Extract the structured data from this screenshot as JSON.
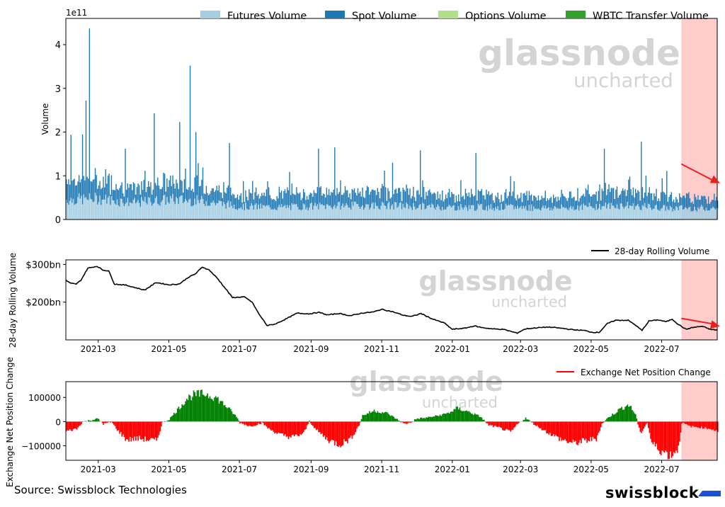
{
  "source_label": "Source: Swissblock Technologies",
  "brand": {
    "name": "swissblock",
    "mark": "swissblock-logo-icon"
  },
  "watermark": {
    "line1": "glassnode",
    "line2": "uncharted"
  },
  "colors": {
    "futures": "#a6cee3",
    "spot": "#1f78b4",
    "options": "#b2df8a",
    "wbtc": "#33a02c",
    "rolling": "#000000",
    "net_pos": "#008000",
    "net_neg": "#ff0000",
    "highlight": "#ffcccc",
    "arrow": "#e8211c",
    "brand_mark": "#1a4fd6"
  },
  "chart_data": [
    {
      "id": "volume",
      "type": "bar",
      "stacked": true,
      "xlim": [
        "2021-02-01",
        "2022-08-18"
      ],
      "ylim": [
        0,
        4.6
      ],
      "ylabel": "Volume",
      "y_exponent_label": "1e11",
      "yticks": [
        0,
        1,
        2,
        3,
        4
      ],
      "ytick_labels": [
        "0",
        "1",
        "2",
        "3",
        "4"
      ],
      "legend": {
        "placement": "top",
        "entries": [
          "Futures Volume",
          "Spot Volume",
          "Options Volume",
          "WBTC Transfer Volume"
        ]
      },
      "highlight_range": [
        "2022-07-18",
        "2022-08-18"
      ],
      "arrow": {
        "from": [
          "2022-07-18",
          1.27
        ],
        "to": [
          "2022-08-18",
          0.83
        ]
      },
      "series": [
        {
          "name": "Futures Volume",
          "anchors": [
            [
              "2021-02-01",
              0.45
            ],
            [
              "2021-03-01",
              0.48
            ],
            [
              "2021-04-01",
              0.38
            ],
            [
              "2021-05-01",
              0.46
            ],
            [
              "2021-06-01",
              0.42
            ],
            [
              "2021-07-01",
              0.3
            ],
            [
              "2021-08-01",
              0.28
            ],
            [
              "2021-09-01",
              0.3
            ],
            [
              "2021-10-01",
              0.32
            ],
            [
              "2021-11-01",
              0.32
            ],
            [
              "2021-12-01",
              0.3
            ],
            [
              "2022-01-01",
              0.28
            ],
            [
              "2022-02-01",
              0.28
            ],
            [
              "2022-03-01",
              0.28
            ],
            [
              "2022-04-01",
              0.26
            ],
            [
              "2022-05-01",
              0.3
            ],
            [
              "2022-06-01",
              0.32
            ],
            [
              "2022-07-01",
              0.26
            ],
            [
              "2022-08-18",
              0.26
            ]
          ]
        },
        {
          "name": "Spot Volume",
          "anchors": [
            [
              "2021-02-01",
              0.45
            ],
            [
              "2021-03-01",
              0.42
            ],
            [
              "2021-04-01",
              0.3
            ],
            [
              "2021-05-01",
              0.4
            ],
            [
              "2021-06-01",
              0.34
            ],
            [
              "2021-07-01",
              0.25
            ],
            [
              "2021-08-01",
              0.3
            ],
            [
              "2021-09-01",
              0.32
            ],
            [
              "2021-10-01",
              0.3
            ],
            [
              "2021-11-01",
              0.32
            ],
            [
              "2021-12-01",
              0.3
            ],
            [
              "2022-01-01",
              0.26
            ],
            [
              "2022-02-01",
              0.3
            ],
            [
              "2022-03-01",
              0.26
            ],
            [
              "2022-04-01",
              0.24
            ],
            [
              "2022-05-01",
              0.32
            ],
            [
              "2022-06-01",
              0.34
            ],
            [
              "2022-07-01",
              0.28
            ],
            [
              "2022-08-18",
              0.24
            ]
          ]
        }
      ],
      "spikes": [
        [
          "2021-02-18",
          2.72
        ],
        [
          "2021-02-21",
          4.37
        ],
        [
          "2021-02-05",
          1.94
        ],
        [
          "2021-02-15",
          1.95
        ],
        [
          "2021-03-24",
          1.62
        ],
        [
          "2021-04-18",
          2.43
        ],
        [
          "2021-05-10",
          2.23
        ],
        [
          "2021-05-19",
          3.52
        ],
        [
          "2021-05-24",
          2.0
        ],
        [
          "2021-06-22",
          1.75
        ],
        [
          "2021-09-07",
          1.62
        ],
        [
          "2021-09-21",
          1.65
        ],
        [
          "2021-11-10",
          1.3
        ],
        [
          "2021-12-04",
          1.58
        ],
        [
          "2022-01-21",
          1.52
        ],
        [
          "2022-05-12",
          1.62
        ],
        [
          "2022-06-13",
          1.78
        ],
        [
          "2022-07-05",
          1.11
        ]
      ]
    },
    {
      "id": "rolling",
      "type": "line",
      "xlim": [
        "2021-02-01",
        "2022-08-18"
      ],
      "ylim": [
        100,
        312
      ],
      "ylabel": "28-day Rolling Volume",
      "yticks": [
        200,
        300
      ],
      "ytick_labels": [
        "$200bn",
        "$300bn"
      ],
      "legend": {
        "placement": "top-right",
        "entries": [
          "28-day Rolling Volume"
        ]
      },
      "highlight_range": [
        "2022-07-18",
        "2022-08-18"
      ],
      "arrow": {
        "from": [
          "2022-07-18",
          157
        ],
        "to": [
          "2022-08-18",
          136
        ]
      },
      "series": [
        {
          "name": "28-day Rolling Volume",
          "points": [
            [
              "2021-02-01",
              258
            ],
            [
              "2021-02-05",
              250
            ],
            [
              "2021-02-10",
              248
            ],
            [
              "2021-02-14",
              258
            ],
            [
              "2021-02-20",
              290
            ],
            [
              "2021-02-28",
              295
            ],
            [
              "2021-03-05",
              285
            ],
            [
              "2021-03-10",
              283
            ],
            [
              "2021-03-15",
              248
            ],
            [
              "2021-03-25",
              245
            ],
            [
              "2021-04-05",
              236
            ],
            [
              "2021-04-10",
              232
            ],
            [
              "2021-04-20",
              252
            ],
            [
              "2021-05-01",
              246
            ],
            [
              "2021-05-10",
              248
            ],
            [
              "2021-05-18",
              266
            ],
            [
              "2021-05-24",
              275
            ],
            [
              "2021-05-30",
              293
            ],
            [
              "2021-06-05",
              285
            ],
            [
              "2021-06-12",
              263
            ],
            [
              "2021-06-20",
              232
            ],
            [
              "2021-06-25",
              212
            ],
            [
              "2021-07-05",
              214
            ],
            [
              "2021-07-12",
              200
            ],
            [
              "2021-07-18",
              168
            ],
            [
              "2021-07-25",
              138
            ],
            [
              "2021-08-01",
              142
            ],
            [
              "2021-08-10",
              155
            ],
            [
              "2021-08-20",
              171
            ],
            [
              "2021-08-30",
              169
            ],
            [
              "2021-09-08",
              173
            ],
            [
              "2021-09-15",
              166
            ],
            [
              "2021-09-25",
              170
            ],
            [
              "2021-10-05",
              164
            ],
            [
              "2021-10-15",
              171
            ],
            [
              "2021-10-25",
              174
            ],
            [
              "2021-11-01",
              181
            ],
            [
              "2021-11-10",
              175
            ],
            [
              "2021-11-20",
              165
            ],
            [
              "2021-11-27",
              162
            ],
            [
              "2021-12-05",
              170
            ],
            [
              "2021-12-15",
              155
            ],
            [
              "2021-12-25",
              145
            ],
            [
              "2022-01-01",
              128
            ],
            [
              "2022-01-12",
              131
            ],
            [
              "2022-01-20",
              137
            ],
            [
              "2022-01-26",
              133
            ],
            [
              "2022-02-05",
              129
            ],
            [
              "2022-02-14",
              128
            ],
            [
              "2022-02-20",
              123
            ],
            [
              "2022-02-26",
              118
            ],
            [
              "2022-03-05",
              129
            ],
            [
              "2022-03-15",
              132
            ],
            [
              "2022-03-25",
              134
            ],
            [
              "2022-04-05",
              131
            ],
            [
              "2022-04-15",
              127
            ],
            [
              "2022-04-25",
              125
            ],
            [
              "2022-05-02",
              120
            ],
            [
              "2022-05-08",
              120
            ],
            [
              "2022-05-15",
              143
            ],
            [
              "2022-05-22",
              152
            ],
            [
              "2022-06-02",
              152
            ],
            [
              "2022-06-08",
              140
            ],
            [
              "2022-06-14",
              125
            ],
            [
              "2022-06-20",
              150
            ],
            [
              "2022-06-28",
              153
            ],
            [
              "2022-07-05",
              148
            ],
            [
              "2022-07-10",
              155
            ],
            [
              "2022-07-15",
              142
            ],
            [
              "2022-07-22",
              128
            ],
            [
              "2022-07-28",
              133
            ],
            [
              "2022-08-05",
              136
            ],
            [
              "2022-08-12",
              128
            ],
            [
              "2022-08-18",
              126
            ]
          ]
        }
      ]
    },
    {
      "id": "netpos",
      "type": "bar",
      "xlim": [
        "2021-02-01",
        "2022-08-18"
      ],
      "ylim": [
        -160000,
        165000
      ],
      "ylabel": "Exchange Net Position Change",
      "yticks": [
        100000,
        0,
        -100000
      ],
      "ytick_labels": [
        "100000",
        "0",
        "−100000"
      ],
      "legend": {
        "placement": "top-right",
        "entries": [
          "Exchange Net Position Change"
        ]
      },
      "highlight_range": [
        "2022-07-18",
        "2022-08-18"
      ],
      "x_ticks": [
        "2021-03",
        "2021-05",
        "2021-07",
        "2021-09",
        "2021-11",
        "2022-01",
        "2022-03",
        "2022-05",
        "2022-07"
      ],
      "series": [
        {
          "name": "Exchange Net Position Change",
          "anchors": [
            [
              "2021-02-01",
              -40000
            ],
            [
              "2021-02-10",
              -30000
            ],
            [
              "2021-02-15",
              -2000
            ],
            [
              "2021-02-28",
              12000
            ],
            [
              "2021-03-05",
              -10000
            ],
            [
              "2021-03-12",
              -2000
            ],
            [
              "2021-03-18",
              -40000
            ],
            [
              "2021-03-25",
              -75000
            ],
            [
              "2021-04-05",
              -70000
            ],
            [
              "2021-04-20",
              -80000
            ],
            [
              "2021-04-25",
              -5000
            ],
            [
              "2021-05-01",
              10000
            ],
            [
              "2021-05-10",
              60000
            ],
            [
              "2021-05-16",
              95000
            ],
            [
              "2021-05-22",
              110000
            ],
            [
              "2021-06-01",
              115000
            ],
            [
              "2021-06-10",
              100000
            ],
            [
              "2021-06-20",
              60000
            ],
            [
              "2021-06-28",
              20000
            ],
            [
              "2021-07-01",
              -5000
            ],
            [
              "2021-07-10",
              -20000
            ],
            [
              "2021-07-20",
              -5000
            ],
            [
              "2021-07-26",
              -30000
            ],
            [
              "2021-08-05",
              -55000
            ],
            [
              "2021-08-15",
              -65000
            ],
            [
              "2021-08-25",
              -50000
            ],
            [
              "2021-08-30",
              2000
            ],
            [
              "2021-09-05",
              -35000
            ],
            [
              "2021-09-15",
              -75000
            ],
            [
              "2021-09-25",
              -95000
            ],
            [
              "2021-10-05",
              -70000
            ],
            [
              "2021-10-12",
              -15000
            ],
            [
              "2021-10-15",
              25000
            ],
            [
              "2021-10-25",
              45000
            ],
            [
              "2021-11-05",
              35000
            ],
            [
              "2021-11-12",
              15000
            ],
            [
              "2021-11-20",
              -10000
            ],
            [
              "2021-11-25",
              -5000
            ],
            [
              "2021-12-01",
              12000
            ],
            [
              "2021-12-08",
              15000
            ],
            [
              "2021-12-20",
              25000
            ],
            [
              "2021-12-28",
              35000
            ],
            [
              "2022-01-05",
              55000
            ],
            [
              "2022-01-15",
              40000
            ],
            [
              "2022-01-25",
              20000
            ],
            [
              "2022-02-01",
              -15000
            ],
            [
              "2022-02-10",
              -25000
            ],
            [
              "2022-02-20",
              -45000
            ],
            [
              "2022-02-26",
              -10000
            ],
            [
              "2022-03-05",
              15000
            ],
            [
              "2022-03-12",
              -10000
            ],
            [
              "2022-03-22",
              -40000
            ],
            [
              "2022-04-05",
              -75000
            ],
            [
              "2022-04-15",
              -90000
            ],
            [
              "2022-04-25",
              -80000
            ],
            [
              "2022-05-05",
              -70000
            ],
            [
              "2022-05-10",
              -10000
            ],
            [
              "2022-05-15",
              15000
            ],
            [
              "2022-05-25",
              50000
            ],
            [
              "2022-06-02",
              70000
            ],
            [
              "2022-06-08",
              30000
            ],
            [
              "2022-06-12",
              -50000
            ],
            [
              "2022-06-18",
              -5000
            ],
            [
              "2022-06-22",
              -90000
            ],
            [
              "2022-06-30",
              -120000
            ],
            [
              "2022-07-08",
              -140000
            ],
            [
              "2022-07-15",
              -110000
            ],
            [
              "2022-07-18",
              -5000
            ],
            [
              "2022-07-25",
              -20000
            ],
            [
              "2022-08-05",
              -25000
            ],
            [
              "2022-08-12",
              -30000
            ],
            [
              "2022-08-18",
              -40000
            ]
          ]
        }
      ]
    }
  ]
}
